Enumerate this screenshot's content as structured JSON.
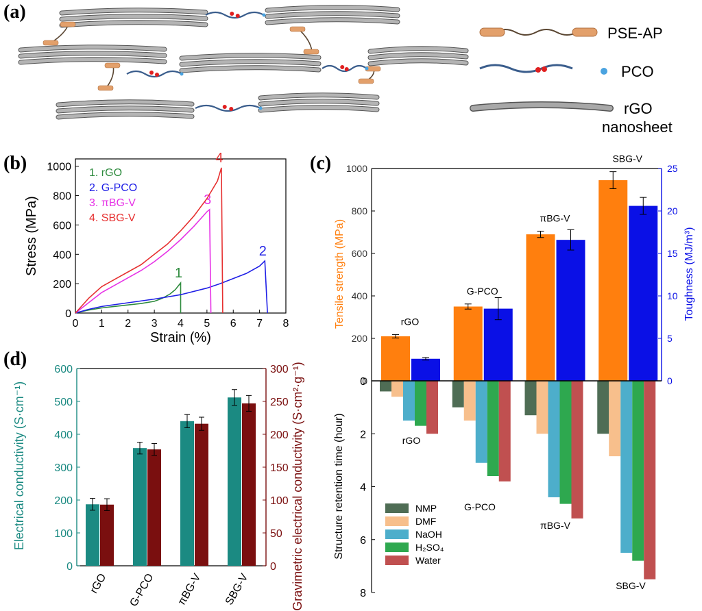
{
  "panel_a": {
    "label": "(a)",
    "legend": [
      {
        "id": "pse",
        "text": "PSE-AP",
        "color": "#e3a06b",
        "chain": "#5a4632"
      },
      {
        "id": "pco",
        "text": "PCO",
        "color": "#3a5d8c",
        "dot": "#e02020",
        "end": "#4aa3e0"
      },
      {
        "id": "rgo",
        "text": "rGO",
        "text2": "nanosheet",
        "color": "#a8a8a8",
        "edge": "#555555"
      }
    ]
  },
  "chart_data": [
    {
      "id": "b",
      "panel_label": "(b)",
      "type": "line",
      "xlabel": "Strain (%)",
      "ylabel": "Stress (MPa)",
      "xlim": [
        0,
        8
      ],
      "ylim": [
        0,
        1050
      ],
      "xticks": [
        "0",
        "1",
        "2",
        "3",
        "4",
        "5",
        "6",
        "7",
        "8"
      ],
      "yticks": [
        "0",
        "200",
        "400",
        "600",
        "800",
        "1000"
      ],
      "series": [
        {
          "name": "1. rGO",
          "end_label": "1",
          "color": "#2e8b3e",
          "x": [
            0,
            0.5,
            1,
            1.5,
            2,
            2.5,
            3,
            3.3,
            3.6,
            3.8,
            4.0,
            4.0
          ],
          "y": [
            0,
            20,
            35,
            45,
            55,
            65,
            80,
            100,
            130,
            160,
            205,
            0
          ]
        },
        {
          "name": "2. G-PCO",
          "end_label": "2",
          "color": "#1f1fe6",
          "x": [
            0,
            0.5,
            1,
            2,
            3,
            4,
            5,
            5.5,
            6,
            6.5,
            7,
            7.2,
            7.3
          ],
          "y": [
            0,
            25,
            45,
            70,
            95,
            125,
            170,
            200,
            235,
            270,
            320,
            355,
            0
          ]
        },
        {
          "name": "3. πBG-V",
          "end_label": "3",
          "color": "#e632e6",
          "x": [
            0,
            0.5,
            1,
            1.5,
            2,
            2.5,
            3,
            3.5,
            4,
            4.5,
            5.0,
            5.1,
            5.15
          ],
          "y": [
            0,
            70,
            140,
            190,
            240,
            290,
            350,
            420,
            500,
            590,
            690,
            705,
            0
          ]
        },
        {
          "name": "4. SBG-V",
          "end_label": "4",
          "color": "#e63030",
          "x": [
            0,
            0.5,
            1,
            1.5,
            2,
            2.5,
            3,
            3.5,
            4,
            4.5,
            5.0,
            5.4,
            5.55,
            5.6
          ],
          "y": [
            0,
            100,
            180,
            230,
            280,
            330,
            400,
            470,
            560,
            660,
            780,
            900,
            990,
            0
          ]
        }
      ]
    },
    {
      "id": "c",
      "panel_label": "(c)",
      "type": "bar",
      "categories": [
        "rGO",
        "G-PCO",
        "πBG-V",
        "SBG-V"
      ],
      "upper": {
        "ylabel_left": "Tensile strength (MPa)",
        "ylabel_right": "Toughness (MJ/m³)",
        "ylim_left": [
          0,
          1000
        ],
        "ylim_right": [
          0,
          25
        ],
        "yticks_left": [
          "0",
          "200",
          "400",
          "600",
          "800",
          "1000"
        ],
        "yticks_right": [
          "0",
          "5",
          "10",
          "15",
          "20",
          "25"
        ],
        "series": [
          {
            "name": "Tensile strength",
            "axis": "left",
            "color": "#ff7f0e",
            "values": [
              210,
              350,
              690,
              945
            ],
            "errors": [
              8,
              12,
              15,
              40
            ]
          },
          {
            "name": "Toughness",
            "axis": "right",
            "color": "#0a10e6",
            "values": [
              2.6,
              8.5,
              16.6,
              20.6
            ],
            "errors": [
              0.15,
              1.3,
              1.2,
              1.0
            ]
          }
        ]
      },
      "lower": {
        "ylabel": "Structure retention time (hour)",
        "ylim": [
          0,
          8
        ],
        "yticks": [
          "0",
          "2",
          "4",
          "6",
          "8"
        ],
        "series": [
          {
            "name": "NMP",
            "color": "#4f6d55",
            "values": [
              0.4,
              1.0,
              1.3,
              2.0
            ]
          },
          {
            "name": "DMF",
            "color": "#f7bf8c",
            "values": [
              0.6,
              1.5,
              2.0,
              2.85
            ]
          },
          {
            "name": "NaOH",
            "color": "#4daecb",
            "values": [
              1.5,
              3.1,
              4.4,
              6.5
            ]
          },
          {
            "name": "H₂SO₄",
            "color": "#2ea84f",
            "values": [
              1.7,
              3.6,
              4.65,
              6.8
            ]
          },
          {
            "name": "Water",
            "color": "#c05050",
            "values": [
              2.0,
              3.8,
              5.2,
              7.5
            ]
          }
        ]
      }
    },
    {
      "id": "d",
      "panel_label": "(d)",
      "type": "bar",
      "categories": [
        "rGO",
        "G-PCO",
        "πBG-V",
        "SBG-V"
      ],
      "ylabel_left": "Electrical conductivity (S·cm⁻¹)",
      "ylabel_right": "Gravimetric electrical conductivity (S·cm²·g⁻¹)",
      "ylim_left": [
        0,
        600
      ],
      "ylim_right": [
        0,
        300
      ],
      "yticks_left": [
        "0",
        "100",
        "200",
        "300",
        "400",
        "500",
        "600"
      ],
      "yticks_right": [
        "0",
        "50",
        "100",
        "150",
        "200",
        "250",
        "300"
      ],
      "series": [
        {
          "name": "Electrical conductivity",
          "axis": "left",
          "color": "#1b8a82",
          "values": [
            187,
            358,
            440,
            512
          ],
          "errors": [
            18,
            18,
            20,
            24
          ]
        },
        {
          "name": "Gravimetric electrical conductivity",
          "axis": "right",
          "color": "#7a0f0f",
          "values": [
            93,
            177,
            216,
            247
          ],
          "errors": [
            9,
            9,
            10,
            12
          ]
        }
      ]
    }
  ]
}
